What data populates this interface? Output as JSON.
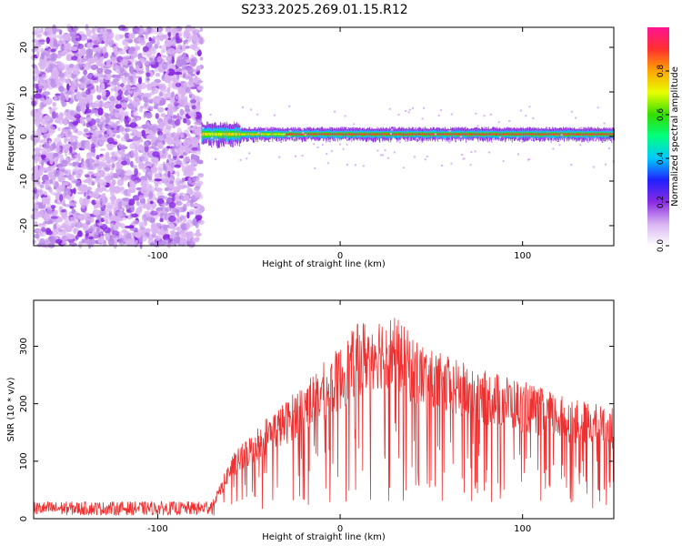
{
  "title": "S233.2025.269.01.15.R12",
  "chart_data": [
    {
      "type": "heatmap",
      "xlabel": "Height of straight line (km)",
      "ylabel": "Frequency (Hz)",
      "xlim": [
        -168,
        150
      ],
      "ylim": [
        -24.5,
        24.5
      ],
      "xticks": [
        -100,
        0,
        100
      ],
      "yticks": [
        -20,
        -10,
        0,
        10,
        20
      ],
      "grid": false,
      "colorbar": {
        "label": "Normalized spectral amplitude",
        "range": [
          0,
          1
        ],
        "ticks": [
          "0.0",
          "0.2",
          "0.4",
          "0.6",
          "0.8"
        ],
        "colors": [
          "#ffffff",
          "#d9b3f2",
          "#8a2be2",
          "#2020ff",
          "#00c8ff",
          "#00ff80",
          "#33dd00",
          "#e5ff00",
          "#ffa500",
          "#ff3030",
          "#ff1493"
        ]
      },
      "regions": [
        {
          "x_range": [
            -168,
            -76
          ],
          "description_free": "scattered low-amplitude purple noise across all frequencies"
        },
        {
          "x_range": [
            -76,
            150
          ],
          "center_frequency_hz": 0.5,
          "description_free": "narrow band near 0 Hz with peak amplitude ~0.9"
        }
      ]
    },
    {
      "type": "line",
      "xlabel": "Height of straight line (km)",
      "ylabel": "SNR (10 * v/v)",
      "xlim": [
        -168,
        150
      ],
      "ylim": [
        0,
        380
      ],
      "xticks": [
        -100,
        0,
        100
      ],
      "yticks": [
        0,
        100,
        200,
        300
      ],
      "grid": false,
      "series": [
        {
          "color": "#ee3030",
          "envelope_x": [
            -168,
            -76,
            -70,
            -65,
            -60,
            -50,
            -40,
            -30,
            -20,
            -10,
            0,
            10,
            20,
            30,
            40,
            50,
            60,
            70,
            80,
            90,
            100,
            110,
            120,
            130,
            140,
            150
          ],
          "envelope_y": [
            20,
            20,
            25,
            55,
            90,
            120,
            150,
            170,
            200,
            225,
            250,
            285,
            300,
            295,
            265,
            245,
            235,
            225,
            215,
            210,
            200,
            190,
            180,
            172,
            168,
            160
          ]
        }
      ]
    }
  ]
}
